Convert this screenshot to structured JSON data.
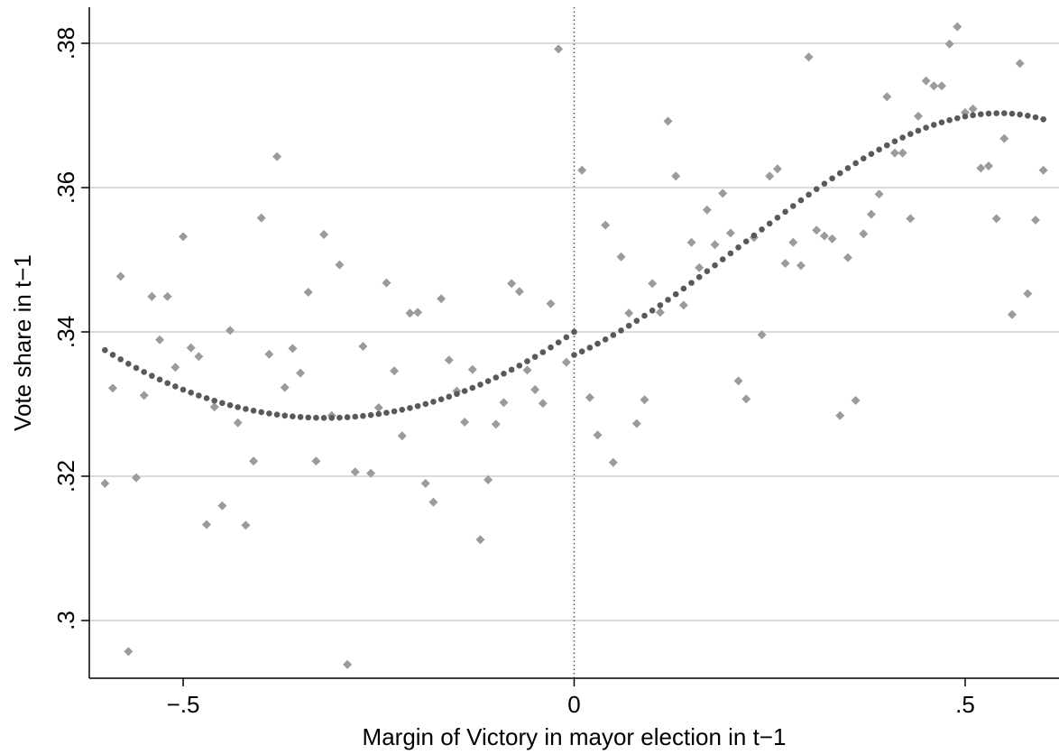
{
  "chart_data": {
    "type": "scatter",
    "title": "",
    "xlabel": "Margin of Victory in mayor election in t−1",
    "ylabel": "Vote share in t−1",
    "xlim": [
      -0.62,
      0.62
    ],
    "ylim": [
      0.292,
      0.385
    ],
    "x_ticks": [
      -0.5,
      0,
      0.5
    ],
    "x_tick_labels": [
      "−.5",
      "0",
      ".5"
    ],
    "y_ticks": [
      0.3,
      0.32,
      0.34,
      0.36,
      0.38
    ],
    "y_tick_labels": [
      ".3",
      ".32",
      ".34",
      ".36",
      ".38"
    ],
    "grid": "horizontal",
    "reference_line": {
      "x": 0,
      "style": "dotted"
    },
    "colors": {
      "scatter": "#9b9b9b",
      "fit": "#595959",
      "grid": "#dcdcdc",
      "axis": "#000000"
    },
    "series": [
      {
        "kind": "binned-means",
        "points": [
          [
            -0.6,
            0.319
          ],
          [
            -0.59,
            0.3322
          ],
          [
            -0.58,
            0.3477
          ],
          [
            -0.57,
            0.2957
          ],
          [
            -0.56,
            0.3198
          ],
          [
            -0.55,
            0.3312
          ],
          [
            -0.54,
            0.3449
          ],
          [
            -0.53,
            0.3389
          ],
          [
            -0.52,
            0.3449
          ],
          [
            -0.51,
            0.3351
          ],
          [
            -0.5,
            0.3532
          ],
          [
            -0.49,
            0.3378
          ],
          [
            -0.48,
            0.3366
          ],
          [
            -0.47,
            0.3133
          ],
          [
            -0.46,
            0.3296
          ],
          [
            -0.45,
            0.3159
          ],
          [
            -0.44,
            0.3402
          ],
          [
            -0.43,
            0.3274
          ],
          [
            -0.42,
            0.3132
          ],
          [
            -0.41,
            0.3221
          ],
          [
            -0.4,
            0.3558
          ],
          [
            -0.39,
            0.3369
          ],
          [
            -0.38,
            0.3643
          ],
          [
            -0.37,
            0.3323
          ],
          [
            -0.36,
            0.3377
          ],
          [
            -0.35,
            0.3343
          ],
          [
            -0.34,
            0.3455
          ],
          [
            -0.33,
            0.3221
          ],
          [
            -0.32,
            0.3535
          ],
          [
            -0.31,
            0.3284
          ],
          [
            -0.3,
            0.3493
          ],
          [
            -0.29,
            0.2939
          ],
          [
            -0.28,
            0.3206
          ],
          [
            -0.27,
            0.338
          ],
          [
            -0.26,
            0.3204
          ],
          [
            -0.25,
            0.3295
          ],
          [
            -0.24,
            0.3468
          ],
          [
            -0.23,
            0.3346
          ],
          [
            -0.22,
            0.3256
          ],
          [
            -0.21,
            0.3426
          ],
          [
            -0.2,
            0.3427
          ],
          [
            -0.19,
            0.319
          ],
          [
            -0.18,
            0.3164
          ],
          [
            -0.17,
            0.3446
          ],
          [
            -0.16,
            0.3361
          ],
          [
            -0.15,
            0.3318
          ],
          [
            -0.14,
            0.3275
          ],
          [
            -0.13,
            0.3348
          ],
          [
            -0.12,
            0.3112
          ],
          [
            -0.11,
            0.3195
          ],
          [
            -0.1,
            0.3272
          ],
          [
            -0.09,
            0.3302
          ],
          [
            -0.08,
            0.3467
          ],
          [
            -0.07,
            0.3456
          ],
          [
            -0.06,
            0.3347
          ],
          [
            -0.05,
            0.332
          ],
          [
            -0.04,
            0.3301
          ],
          [
            -0.03,
            0.3439
          ],
          [
            -0.02,
            0.3792
          ],
          [
            -0.01,
            0.3358
          ],
          [
            0.01,
            0.3624
          ],
          [
            0.02,
            0.3309
          ],
          [
            0.03,
            0.3257
          ],
          [
            0.04,
            0.3548
          ],
          [
            0.05,
            0.3219
          ],
          [
            0.06,
            0.3504
          ],
          [
            0.07,
            0.3426
          ],
          [
            0.08,
            0.3273
          ],
          [
            0.09,
            0.3306
          ],
          [
            0.1,
            0.3467
          ],
          [
            0.11,
            0.3427
          ],
          [
            0.12,
            0.3692
          ],
          [
            0.13,
            0.3616
          ],
          [
            0.14,
            0.3437
          ],
          [
            0.15,
            0.3524
          ],
          [
            0.16,
            0.3489
          ],
          [
            0.17,
            0.3569
          ],
          [
            0.18,
            0.3521
          ],
          [
            0.19,
            0.3592
          ],
          [
            0.2,
            0.3537
          ],
          [
            0.21,
            0.3332
          ],
          [
            0.22,
            0.3307
          ],
          [
            0.23,
            0.3531
          ],
          [
            0.24,
            0.3396
          ],
          [
            0.25,
            0.3616
          ],
          [
            0.26,
            0.3626
          ],
          [
            0.27,
            0.3495
          ],
          [
            0.28,
            0.3524
          ],
          [
            0.29,
            0.3492
          ],
          [
            0.3,
            0.3781
          ],
          [
            0.31,
            0.3541
          ],
          [
            0.32,
            0.3533
          ],
          [
            0.33,
            0.3529
          ],
          [
            0.34,
            0.3284
          ],
          [
            0.35,
            0.3503
          ],
          [
            0.36,
            0.3305
          ],
          [
            0.37,
            0.3536
          ],
          [
            0.38,
            0.3563
          ],
          [
            0.39,
            0.3591
          ],
          [
            0.4,
            0.3726
          ],
          [
            0.41,
            0.3648
          ],
          [
            0.42,
            0.3648
          ],
          [
            0.43,
            0.3557
          ],
          [
            0.44,
            0.3699
          ],
          [
            0.45,
            0.3748
          ],
          [
            0.46,
            0.3741
          ],
          [
            0.47,
            0.3741
          ],
          [
            0.48,
            0.3799
          ],
          [
            0.49,
            0.3823
          ],
          [
            0.5,
            0.3704
          ],
          [
            0.51,
            0.3709
          ],
          [
            0.52,
            0.3627
          ],
          [
            0.53,
            0.363
          ],
          [
            0.54,
            0.3557
          ],
          [
            0.55,
            0.3668
          ],
          [
            0.56,
            0.3424
          ],
          [
            0.57,
            0.3772
          ],
          [
            0.58,
            0.3453
          ],
          [
            0.59,
            0.3555
          ],
          [
            0.6,
            0.3624
          ]
        ]
      },
      {
        "kind": "polynomial-fit",
        "left": {
          "x_range": [
            -0.6,
            0
          ],
          "coeffs": [
            0.34,
            0.075,
            0.118
          ]
        },
        "right": {
          "x_range": [
            0,
            0.6
          ],
          "coeffs": [
            0.3368,
            0.0477,
            0.1646,
            -0.2556
          ]
        }
      }
    ]
  }
}
